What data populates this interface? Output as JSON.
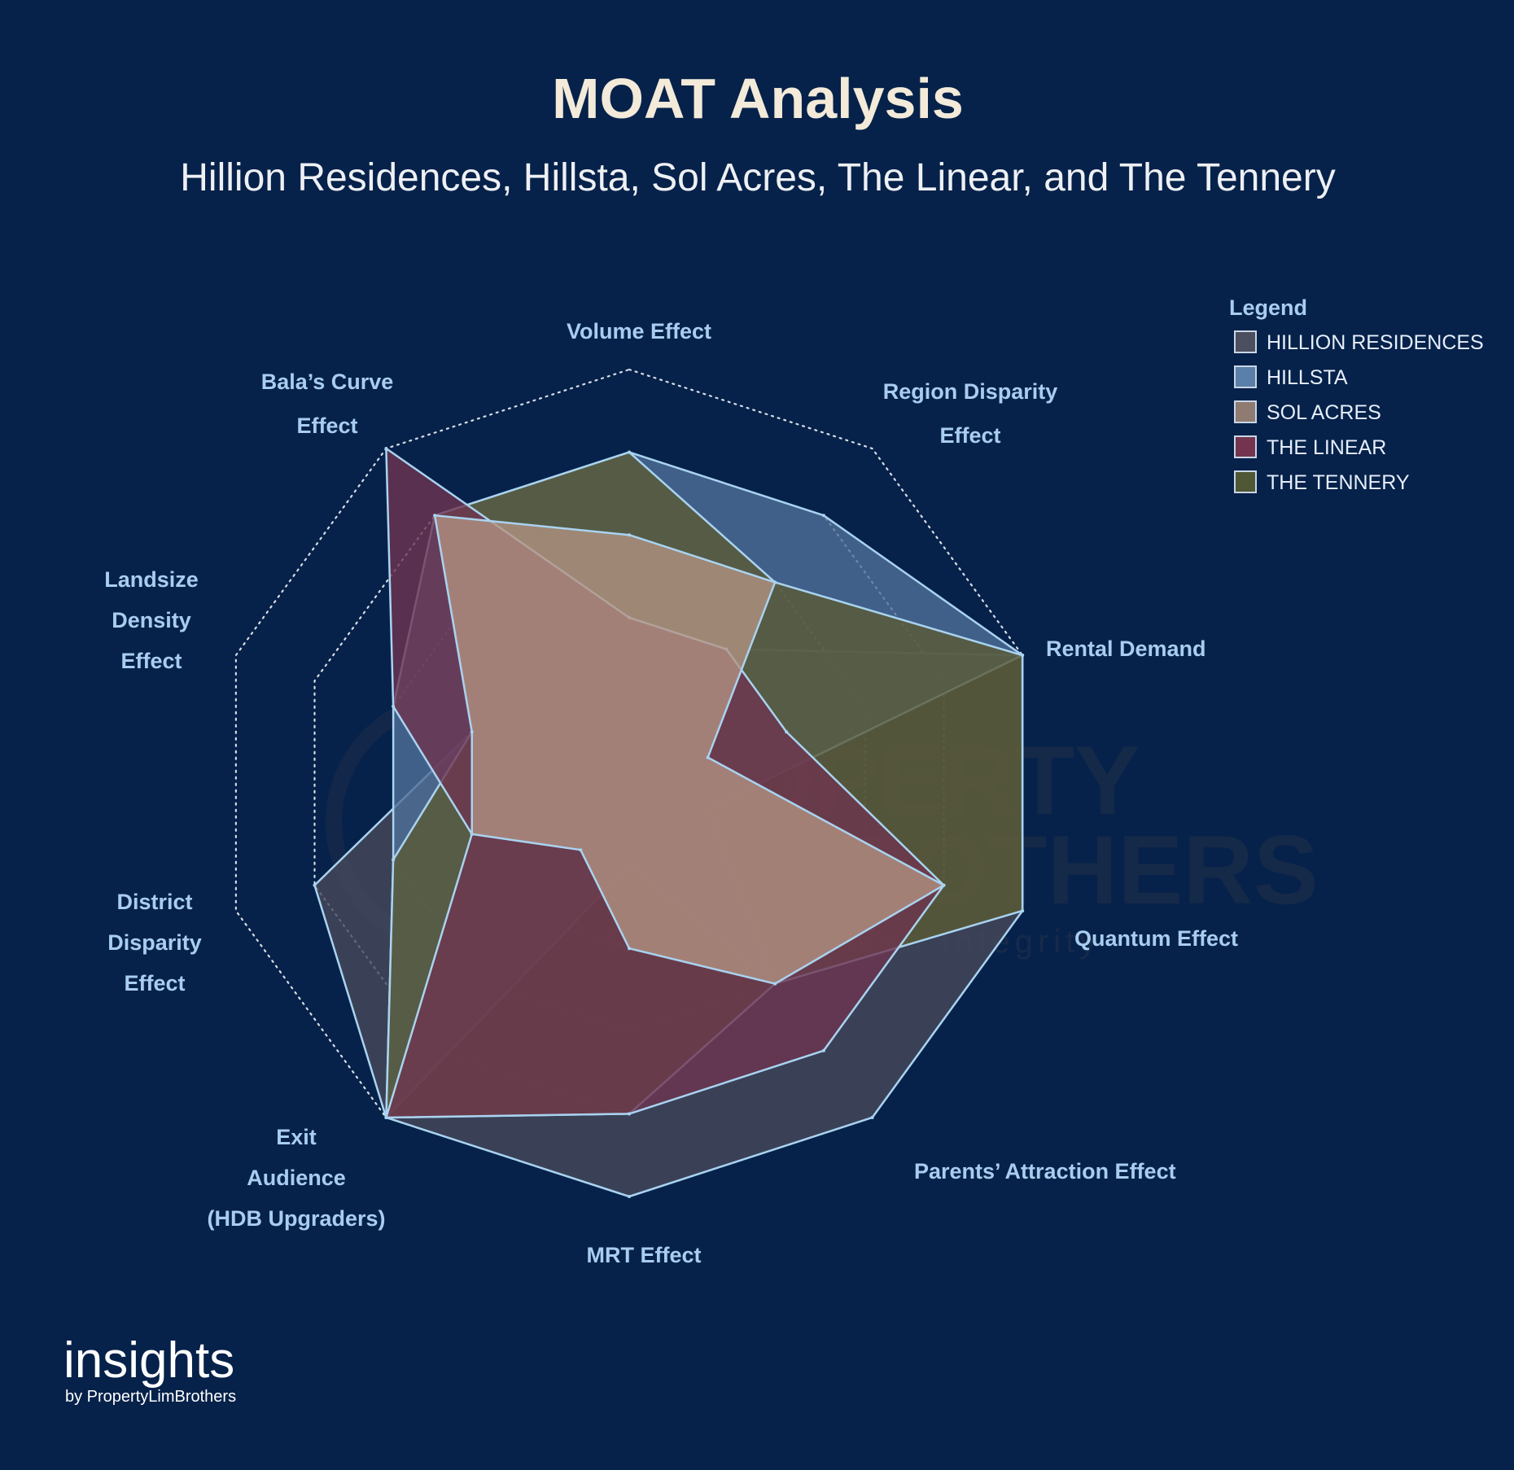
{
  "header": {
    "title": "MOAT Analysis",
    "subtitle": "Hillion Residences, Hillsta, Sol Acres, The Linear, and The Tennery"
  },
  "chart_data": {
    "type": "radar",
    "title": "MOAT Analysis",
    "subtitle": "Hillion Residences, Hillsta, Sol Acres, The Linear, and The Tennery",
    "scale": [
      0,
      5
    ],
    "levels": 5,
    "axes": [
      {
        "label": [
          "Volume Effect"
        ]
      },
      {
        "label": [
          "Region Disparity",
          "Effect"
        ]
      },
      {
        "label": [
          "Rental Demand"
        ]
      },
      {
        "label": [
          "Quantum Effect"
        ]
      },
      {
        "label": [
          "Parents’ Attraction Effect"
        ]
      },
      {
        "label": [
          "MRT Effect"
        ]
      },
      {
        "label": [
          "Exit",
          "Audience",
          "(HDB Upgraders)"
        ]
      },
      {
        "label": [
          "District",
          "Disparity",
          "Effect"
        ]
      },
      {
        "label": [
          "Landsize",
          "Density",
          "Effect"
        ]
      },
      {
        "label": [
          "Bala’s Curve",
          "Effect"
        ]
      }
    ],
    "series": [
      {
        "name": "HILLION RESIDENCES",
        "color": "#474a5a",
        "values": [
          2,
          2,
          5,
          5,
          5,
          5,
          5,
          4,
          2,
          3
        ]
      },
      {
        "name": "HILLSTA",
        "color": "#4f7199",
        "values": [
          4,
          4,
          5,
          1,
          3,
          1,
          5,
          3,
          3,
          4
        ]
      },
      {
        "name": "THE TENNERY",
        "color": "#5a5a34",
        "values": [
          4,
          3,
          5,
          5,
          3,
          4,
          5,
          3,
          2,
          4
        ]
      },
      {
        "name": "THE LINEAR",
        "color": "#6e3450",
        "values": [
          2,
          2,
          2,
          4,
          4,
          4,
          5,
          2,
          3,
          5
        ]
      },
      {
        "name": "SOL ACRES",
        "color": "#b39383",
        "values": [
          3,
          3,
          1,
          4,
          3,
          2,
          1,
          2,
          2,
          4
        ]
      }
    ],
    "legend": {
      "title": "Legend",
      "placement": "top-right",
      "items": [
        {
          "name": "HILLION RESIDENCES",
          "color": "#4b4f5f"
        },
        {
          "name": "HILLSTA",
          "color": "#5a7fa8"
        },
        {
          "name": "SOL ACRES",
          "color": "#8f7b72"
        },
        {
          "name": "THE LINEAR",
          "color": "#74344f"
        },
        {
          "name": "THE TENNERY",
          "color": "#4f5734"
        }
      ]
    },
    "grid": true
  },
  "watermark": {
    "line1": "PROPERTY",
    "line2": "LIMBROTHERS",
    "tagline": "Real Estate With Integrity"
  },
  "branding": {
    "logo": "insights",
    "byline": "by PropertyLimBrothers"
  }
}
